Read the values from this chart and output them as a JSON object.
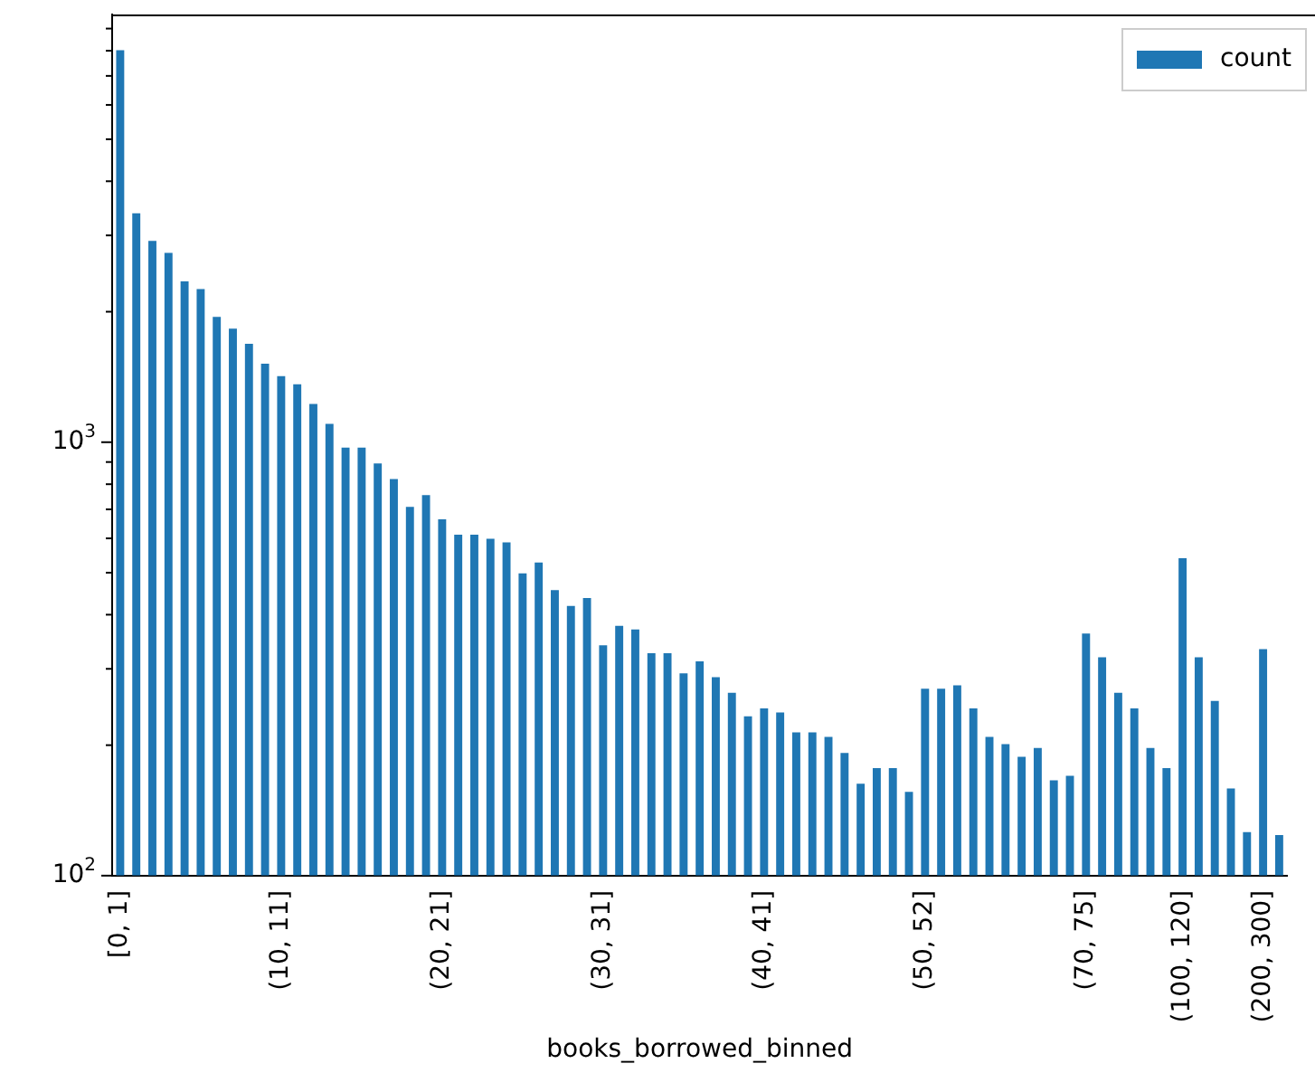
{
  "chart_data": {
    "type": "bar",
    "xlabel": "books_borrowed_binned",
    "categories": [
      "[0, 1]",
      null,
      null,
      null,
      null,
      null,
      null,
      null,
      null,
      null,
      "(10, 11]",
      null,
      null,
      null,
      null,
      null,
      null,
      null,
      null,
      null,
      "(20, 21]",
      null,
      null,
      null,
      null,
      null,
      null,
      null,
      null,
      null,
      "(30, 31]",
      null,
      null,
      null,
      null,
      null,
      null,
      null,
      null,
      null,
      "(40, 41]",
      null,
      null,
      null,
      null,
      null,
      null,
      null,
      null,
      null,
      "(50, 52]",
      null,
      null,
      null,
      null,
      null,
      null,
      null,
      null,
      null,
      "(70, 75]",
      null,
      null,
      null,
      null,
      null,
      "(100, 120]",
      null,
      null,
      null,
      null,
      "(200, 300]",
      null
    ],
    "series": [
      {
        "name": "count",
        "color": "#1f77b4",
        "values": [
          8020,
          3375,
          2915,
          2735,
          2350,
          2255,
          1946,
          1827,
          1686,
          1518,
          1420,
          1361,
          1225,
          1102,
          972,
          972,
          893,
          822,
          709,
          755,
          664,
          612,
          612,
          599,
          587,
          498,
          528,
          456,
          419,
          437,
          340,
          377,
          370,
          326,
          326,
          293,
          312,
          287,
          264,
          233,
          243,
          238,
          214,
          214,
          209,
          192,
          163,
          177,
          177,
          156,
          270,
          270,
          275,
          243,
          209,
          201,
          188,
          197,
          166,
          170,
          362,
          319,
          264,
          243,
          197,
          177,
          540,
          319,
          253,
          159,
          126,
          333,
          124
        ]
      }
    ],
    "log": "y",
    "ylim": [
      100,
      9700
    ],
    "yticks": [
      {
        "value": 100,
        "label": "10$^{2}$"
      },
      {
        "value": 200,
        "label": null
      },
      {
        "value": 300,
        "label": null
      },
      {
        "value": 400,
        "label": null
      },
      {
        "value": 500,
        "label": null
      },
      {
        "value": 600,
        "label": null
      },
      {
        "value": 700,
        "label": null
      },
      {
        "value": 800,
        "label": null
      },
      {
        "value": 900,
        "label": null
      },
      {
        "value": 1000,
        "label": "10$^{3}$"
      },
      {
        "value": 2000,
        "label": null
      },
      {
        "value": 3000,
        "label": null
      },
      {
        "value": 4000,
        "label": null
      },
      {
        "value": 5000,
        "label": null
      },
      {
        "value": 6000,
        "label": null
      },
      {
        "value": 7000,
        "label": null
      },
      {
        "value": 8000,
        "label": null
      },
      {
        "value": 9000,
        "label": null
      }
    ],
    "grid": false,
    "legend": "top right"
  }
}
